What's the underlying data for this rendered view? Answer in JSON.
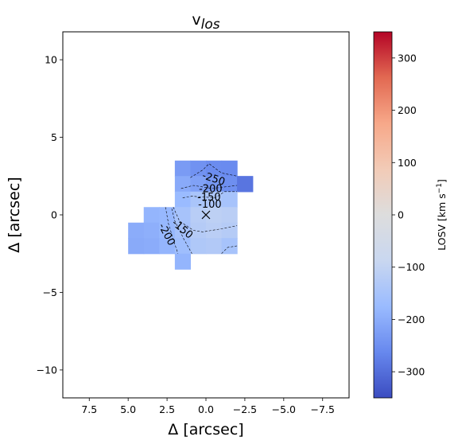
{
  "chart_data": {
    "type": "heatmap",
    "title": "v",
    "title_subscript": "los",
    "xlabel": "Δ [arcsec]",
    "ylabel": "Δ [arcsec]",
    "xlim": [
      9.2,
      -9.2
    ],
    "ylim": [
      -11.8,
      11.8
    ],
    "x_ticks": [
      7.5,
      5.0,
      2.5,
      0.0,
      -2.5,
      -5.0,
      -7.5
    ],
    "x_tick_labels": [
      "7.5",
      "5.0",
      "2.5",
      "0.0",
      "−2.5",
      "−5.0",
      "−7.5"
    ],
    "y_ticks": [
      10,
      5,
      0,
      -5,
      -10
    ],
    "y_tick_labels": [
      "10",
      "5",
      "0",
      "−5",
      "−10"
    ],
    "colorbar": {
      "label": "LOSV [km s",
      "label_unit_sup": "−1",
      "label_close": "]",
      "range": [
        -350,
        350
      ],
      "ticks": [
        300,
        200,
        100,
        0,
        -100,
        -200,
        -300
      ],
      "tick_labels": [
        "300",
        "200",
        "100",
        "0",
        "−100",
        "−200",
        "−300"
      ],
      "colormap": "coolwarm",
      "colormap_stops": [
        "#3b4cc0",
        "#6788ee",
        "#9abbff",
        "#c9d7f0",
        "#dddddd",
        "#f2cbb7",
        "#f7a889",
        "#e26952",
        "#b40426"
      ]
    },
    "cells": [
      {
        "x": 1.5,
        "y": 3.0,
        "v": -230
      },
      {
        "x": 0.5,
        "y": 3.0,
        "v": -245
      },
      {
        "x": -0.5,
        "y": 3.0,
        "v": -255
      },
      {
        "x": -1.5,
        "y": 3.0,
        "v": -258
      },
      {
        "x": 1.5,
        "y": 2.0,
        "v": -205
      },
      {
        "x": 0.5,
        "y": 2.0,
        "v": -220
      },
      {
        "x": -0.5,
        "y": 2.0,
        "v": -235
      },
      {
        "x": -1.5,
        "y": 2.0,
        "v": -250
      },
      {
        "x": -2.5,
        "y": 2.0,
        "v": -270
      },
      {
        "x": -2.5,
        "y": 2.0,
        "v": -290
      },
      {
        "x": 1.5,
        "y": 1.0,
        "v": -175
      },
      {
        "x": 0.5,
        "y": 1.0,
        "v": -145
      },
      {
        "x": -0.5,
        "y": 1.0,
        "v": -140
      },
      {
        "x": -1.5,
        "y": 1.0,
        "v": -150
      },
      {
        "x": 3.5,
        "y": 0.0,
        "v": -185
      },
      {
        "x": 2.5,
        "y": 0.0,
        "v": -180
      },
      {
        "x": 1.5,
        "y": 0.0,
        "v": -150
      },
      {
        "x": 0.5,
        "y": 0.0,
        "v": -120
      },
      {
        "x": -0.5,
        "y": 0.0,
        "v": -110
      },
      {
        "x": -1.5,
        "y": 0.0,
        "v": -115
      },
      {
        "x": 4.5,
        "y": -1.0,
        "v": -200
      },
      {
        "x": 3.5,
        "y": -1.0,
        "v": -195
      },
      {
        "x": 2.5,
        "y": -1.0,
        "v": -180
      },
      {
        "x": 1.5,
        "y": -1.0,
        "v": -155
      },
      {
        "x": 0.5,
        "y": -1.0,
        "v": -125
      },
      {
        "x": -0.5,
        "y": -1.0,
        "v": -115
      },
      {
        "x": -1.5,
        "y": -1.0,
        "v": -125
      },
      {
        "x": 4.5,
        "y": -2.0,
        "v": -205
      },
      {
        "x": 3.5,
        "y": -2.0,
        "v": -200
      },
      {
        "x": 2.5,
        "y": -2.0,
        "v": -185
      },
      {
        "x": 1.5,
        "y": -2.0,
        "v": -165
      },
      {
        "x": 0.5,
        "y": -2.0,
        "v": -135
      },
      {
        "x": -0.5,
        "y": -2.0,
        "v": -130
      },
      {
        "x": -1.5,
        "y": -2.0,
        "v": -150
      },
      {
        "x": 1.5,
        "y": -3.0,
        "v": -185
      }
    ],
    "contour_labels": [
      {
        "text": "-250",
        "x": -0.5,
        "y": 2.35,
        "angle": 18
      },
      {
        "text": "-200",
        "x": -0.3,
        "y": 1.7,
        "angle": 0
      },
      {
        "text": "-150",
        "x": -0.2,
        "y": 1.15,
        "angle": 0
      },
      {
        "text": "-100",
        "x": -0.25,
        "y": 0.7,
        "angle": 0
      },
      {
        "text": "-150",
        "x": 1.5,
        "y": -0.9,
        "angle": 40
      },
      {
        "text": "-200",
        "x": 2.5,
        "y": -1.25,
        "angle": 62
      }
    ],
    "center_marker": {
      "x": 0.0,
      "y": 0.0,
      "symbol": "×"
    }
  }
}
